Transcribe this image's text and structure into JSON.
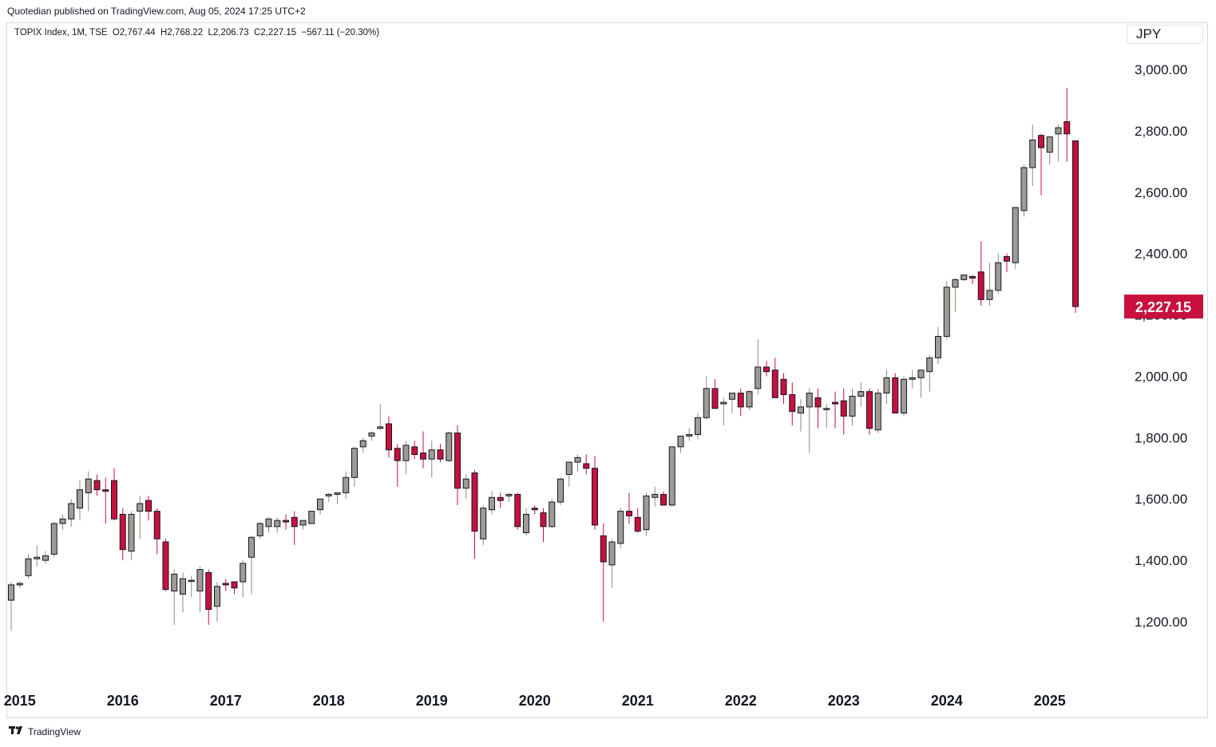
{
  "publisher_line": "Quotedian published on TradingView.com, Aug 05, 2024 17:25 UTC+2",
  "legend_line": "TOPIX Index, 1M, TSE  O2,767.44  H2,768.22  L2,206.73  C2,227.15  −567.11 (−20.30%)",
  "currency": "JPY",
  "footer": {
    "brand": "TradingView",
    "logo_icon": "tradingview-logo-icon"
  },
  "colors": {
    "up": "#a09b94",
    "down": "#c8103e",
    "border": "#131722",
    "price_tag": "#c8103e"
  },
  "chart_data": {
    "type": "candlestick",
    "title": "TOPIX Index, 1M, TSE",
    "start": "2014-12",
    "ylim": [
      1050,
      3080
    ],
    "y_ticks": [
      "1,200.00",
      "1,400.00",
      "1,600.00",
      "1,800.00",
      "2,000.00",
      "2,200.00",
      "2,400.00",
      "2,600.00",
      "2,800.00",
      "3,000.00"
    ],
    "y_tick_values": [
      1200,
      1400,
      1600,
      1800,
      2000,
      2200,
      2400,
      2600,
      2800,
      3000
    ],
    "x_ticks": [
      "2015",
      "2016",
      "2017",
      "2018",
      "2019",
      "2020",
      "2021",
      "2022",
      "2023",
      "2024",
      "2025"
    ],
    "last_price_label": "2,227.15",
    "last_price": 2227.15,
    "ohlc": [
      [
        1270,
        1330,
        1170,
        1320
      ],
      [
        1320,
        1330,
        1310,
        1325
      ],
      [
        1350,
        1420,
        1340,
        1405
      ],
      [
        1405,
        1450,
        1380,
        1410
      ],
      [
        1400,
        1430,
        1390,
        1415
      ],
      [
        1420,
        1525,
        1410,
        1520
      ],
      [
        1520,
        1550,
        1500,
        1535
      ],
      [
        1535,
        1600,
        1510,
        1585
      ],
      [
        1570,
        1660,
        1530,
        1630
      ],
      [
        1620,
        1690,
        1560,
        1665
      ],
      [
        1660,
        1680,
        1610,
        1630
      ],
      [
        1630,
        1670,
        1520,
        1625
      ],
      [
        1660,
        1700,
        1530,
        1535
      ],
      [
        1550,
        1570,
        1400,
        1435
      ],
      [
        1430,
        1560,
        1400,
        1550
      ],
      [
        1560,
        1610,
        1470,
        1585
      ],
      [
        1595,
        1610,
        1530,
        1560
      ],
      [
        1560,
        1570,
        1420,
        1470
      ],
      [
        1460,
        1470,
        1300,
        1305
      ],
      [
        1300,
        1370,
        1190,
        1355
      ],
      [
        1290,
        1360,
        1230,
        1340
      ],
      [
        1335,
        1350,
        1280,
        1335
      ],
      [
        1300,
        1380,
        1230,
        1370
      ],
      [
        1360,
        1370,
        1190,
        1240
      ],
      [
        1250,
        1330,
        1200,
        1315
      ],
      [
        1325,
        1340,
        1300,
        1320
      ],
      [
        1330,
        1330,
        1290,
        1310
      ],
      [
        1330,
        1400,
        1280,
        1390
      ],
      [
        1410,
        1480,
        1290,
        1475
      ],
      [
        1480,
        1525,
        1470,
        1520
      ],
      [
        1510,
        1540,
        1490,
        1535
      ],
      [
        1510,
        1540,
        1490,
        1530
      ],
      [
        1530,
        1550,
        1500,
        1525
      ],
      [
        1540,
        1560,
        1450,
        1510
      ],
      [
        1515,
        1530,
        1500,
        1530
      ],
      [
        1520,
        1560,
        1520,
        1560
      ],
      [
        1565,
        1600,
        1550,
        1600
      ],
      [
        1610,
        1620,
        1590,
        1615
      ],
      [
        1615,
        1620,
        1585,
        1620
      ],
      [
        1620,
        1690,
        1600,
        1670
      ],
      [
        1670,
        1770,
        1640,
        1765
      ],
      [
        1770,
        1800,
        1750,
        1790
      ],
      [
        1805,
        1820,
        1790,
        1815
      ],
      [
        1830,
        1910,
        1825,
        1835
      ],
      [
        1845,
        1870,
        1735,
        1760
      ],
      [
        1765,
        1780,
        1640,
        1725
      ],
      [
        1725,
        1790,
        1680,
        1775
      ],
      [
        1770,
        1790,
        1730,
        1745
      ],
      [
        1750,
        1820,
        1700,
        1730
      ],
      [
        1730,
        1790,
        1670,
        1760
      ],
      [
        1760,
        1780,
        1720,
        1730
      ],
      [
        1725,
        1820,
        1720,
        1815
      ],
      [
        1815,
        1840,
        1580,
        1635
      ],
      [
        1635,
        1680,
        1600,
        1665
      ],
      [
        1685,
        1695,
        1405,
        1495
      ],
      [
        1470,
        1580,
        1450,
        1570
      ],
      [
        1565,
        1625,
        1550,
        1605
      ],
      [
        1605,
        1620,
        1570,
        1595
      ],
      [
        1610,
        1620,
        1590,
        1615
      ],
      [
        1615,
        1620,
        1500,
        1510
      ],
      [
        1490,
        1570,
        1480,
        1550
      ],
      [
        1570,
        1580,
        1550,
        1565
      ],
      [
        1555,
        1570,
        1460,
        1510
      ],
      [
        1510,
        1600,
        1505,
        1590
      ],
      [
        1590,
        1670,
        1580,
        1665
      ],
      [
        1680,
        1720,
        1640,
        1720
      ],
      [
        1720,
        1745,
        1690,
        1735
      ],
      [
        1715,
        1745,
        1680,
        1700
      ],
      [
        1700,
        1740,
        1500,
        1515
      ],
      [
        1480,
        1520,
        1200,
        1395
      ],
      [
        1385,
        1470,
        1310,
        1460
      ],
      [
        1455,
        1570,
        1440,
        1560
      ],
      [
        1560,
        1620,
        1520,
        1545
      ],
      [
        1540,
        1570,
        1490,
        1495
      ],
      [
        1500,
        1620,
        1480,
        1610
      ],
      [
        1605,
        1640,
        1575,
        1615
      ],
      [
        1615,
        1625,
        1580,
        1580
      ],
      [
        1580,
        1770,
        1575,
        1770
      ],
      [
        1770,
        1800,
        1750,
        1805
      ],
      [
        1805,
        1830,
        1790,
        1810
      ],
      [
        1810,
        1880,
        1795,
        1865
      ],
      [
        1865,
        2000,
        1860,
        1960
      ],
      [
        1960,
        1990,
        1900,
        1895
      ],
      [
        1910,
        1930,
        1840,
        1915
      ],
      [
        1925,
        1945,
        1880,
        1945
      ],
      [
        1945,
        1960,
        1870,
        1900
      ],
      [
        1900,
        1955,
        1890,
        1950
      ],
      [
        1960,
        2120,
        1940,
        2030
      ],
      [
        2030,
        2050,
        2000,
        2015
      ],
      [
        2020,
        2060,
        1930,
        1930
      ],
      [
        1990,
        2010,
        1910,
        1940
      ],
      [
        1940,
        1980,
        1840,
        1885
      ],
      [
        1880,
        1925,
        1820,
        1900
      ],
      [
        1900,
        1960,
        1750,
        1945
      ],
      [
        1930,
        1960,
        1830,
        1900
      ],
      [
        1895,
        1910,
        1830,
        1895
      ],
      [
        1915,
        1950,
        1830,
        1910
      ],
      [
        1920,
        1960,
        1810,
        1870
      ],
      [
        1870,
        1960,
        1840,
        1935
      ],
      [
        1935,
        1980,
        1900,
        1950
      ],
      [
        1950,
        1960,
        1810,
        1830
      ],
      [
        1825,
        1960,
        1815,
        1945
      ],
      [
        1945,
        2020,
        1910,
        1995
      ],
      [
        1995,
        2010,
        1890,
        1880
      ],
      [
        1880,
        2000,
        1870,
        1990
      ],
      [
        1990,
        2020,
        1960,
        1995
      ],
      [
        1995,
        2010,
        1930,
        2020
      ],
      [
        2015,
        2070,
        1950,
        2060
      ],
      [
        2060,
        2160,
        2040,
        2130
      ],
      [
        2130,
        2310,
        2120,
        2290
      ],
      [
        2290,
        2320,
        2210,
        2315
      ],
      [
        2315,
        2330,
        2310,
        2330
      ],
      [
        2325,
        2330,
        2300,
        2320
      ],
      [
        2340,
        2440,
        2230,
        2250
      ],
      [
        2250,
        2370,
        2230,
        2280
      ],
      [
        2280,
        2400,
        2270,
        2370
      ],
      [
        2390,
        2400,
        2340,
        2375
      ],
      [
        2370,
        2550,
        2350,
        2550
      ],
      [
        2540,
        2690,
        2520,
        2680
      ],
      [
        2680,
        2820,
        2620,
        2770
      ],
      [
        2785,
        2790,
        2590,
        2745
      ],
      [
        2730,
        2780,
        2690,
        2780
      ],
      [
        2790,
        2820,
        2700,
        2810
      ],
      [
        2830,
        2940,
        2700,
        2790
      ],
      [
        2767.44,
        2768.22,
        2206.73,
        2227.15
      ]
    ]
  }
}
